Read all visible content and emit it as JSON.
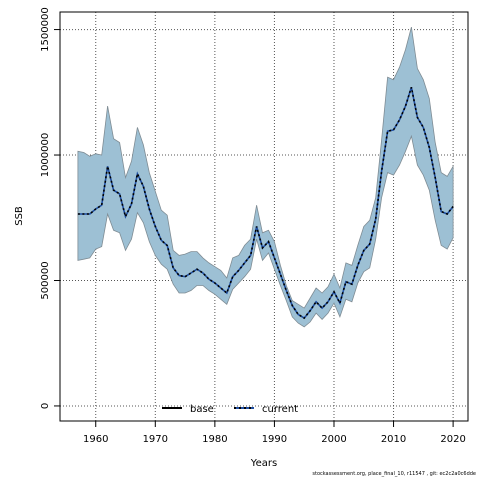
{
  "chart_data": {
    "type": "area",
    "xlabel": "Years",
    "ylabel": "SSB",
    "xlim": [
      1954,
      2022.5
    ],
    "ylim": [
      -60000,
      1570000
    ],
    "x_ticks": [
      1960,
      1970,
      1980,
      1990,
      2000,
      2010,
      2020
    ],
    "y_ticks": [
      0,
      500000,
      1000000,
      1500000
    ],
    "y_tick_labels": [
      "0",
      "500000",
      "1000000",
      "1500000"
    ],
    "grid": true,
    "legend_position": "bottom-center",
    "colors": {
      "band_fill": "#9dc0d4",
      "band_edge": "#7f8c94",
      "line": "#000000",
      "current": "#1f4fa3"
    },
    "years": [
      1957,
      1958,
      1959,
      1960,
      1961,
      1962,
      1963,
      1964,
      1965,
      1966,
      1967,
      1968,
      1969,
      1970,
      1971,
      1972,
      1973,
      1974,
      1975,
      1976,
      1977,
      1978,
      1979,
      1980,
      1981,
      1982,
      1983,
      1984,
      1985,
      1986,
      1987,
      1988,
      1989,
      1990,
      1991,
      1992,
      1993,
      1994,
      1995,
      1996,
      1997,
      1998,
      1999,
      2000,
      2001,
      2002,
      2003,
      2004,
      2005,
      2006,
      2007,
      2008,
      2009,
      2010,
      2011,
      2012,
      2013,
      2014,
      2015,
      2016,
      2017,
      2018,
      2019,
      2020
    ],
    "upper": [
      1015000,
      1010000,
      995000,
      1005000,
      1000000,
      1195000,
      1065000,
      1050000,
      910000,
      975000,
      1110000,
      1040000,
      930000,
      855000,
      780000,
      760000,
      620000,
      600000,
      605000,
      615000,
      615000,
      590000,
      570000,
      555000,
      540000,
      510000,
      590000,
      600000,
      640000,
      665000,
      800000,
      690000,
      700000,
      655000,
      560000,
      480000,
      420000,
      405000,
      390000,
      430000,
      470000,
      450000,
      475000,
      525000,
      470000,
      570000,
      560000,
      640000,
      715000,
      740000,
      830000,
      1060000,
      1310000,
      1300000,
      1350000,
      1420000,
      1510000,
      1345000,
      1300000,
      1225000,
      1050000,
      930000,
      915000,
      955000
    ],
    "median": [
      765000,
      765000,
      765000,
      785000,
      800000,
      955000,
      860000,
      845000,
      755000,
      805000,
      925000,
      875000,
      785000,
      715000,
      660000,
      640000,
      550000,
      520000,
      515000,
      530000,
      545000,
      530000,
      505000,
      490000,
      470000,
      450000,
      515000,
      540000,
      570000,
      600000,
      715000,
      630000,
      655000,
      590000,
      525000,
      460000,
      400000,
      365000,
      350000,
      380000,
      415000,
      390000,
      415000,
      455000,
      410000,
      495000,
      485000,
      560000,
      620000,
      645000,
      745000,
      935000,
      1095000,
      1100000,
      1140000,
      1195000,
      1270000,
      1150000,
      1110000,
      1030000,
      910000,
      775000,
      765000,
      795000
    ],
    "lower": [
      580000,
      585000,
      590000,
      625000,
      635000,
      765000,
      700000,
      690000,
      620000,
      665000,
      770000,
      730000,
      655000,
      600000,
      565000,
      545000,
      485000,
      450000,
      450000,
      460000,
      480000,
      480000,
      460000,
      445000,
      425000,
      405000,
      465000,
      490000,
      515000,
      545000,
      665000,
      580000,
      610000,
      545000,
      480000,
      420000,
      355000,
      330000,
      315000,
      335000,
      370000,
      345000,
      370000,
      410000,
      355000,
      425000,
      415000,
      490000,
      535000,
      550000,
      665000,
      830000,
      930000,
      920000,
      960000,
      1015000,
      1075000,
      960000,
      920000,
      860000,
      740000,
      640000,
      625000,
      670000
    ],
    "series": [
      {
        "name": "base",
        "style": "solid"
      },
      {
        "name": "current",
        "style": "dotted"
      }
    ]
  },
  "footer": "stockassessment.org, place_final_10, r11547 , git: ec2c2a0c6dde"
}
